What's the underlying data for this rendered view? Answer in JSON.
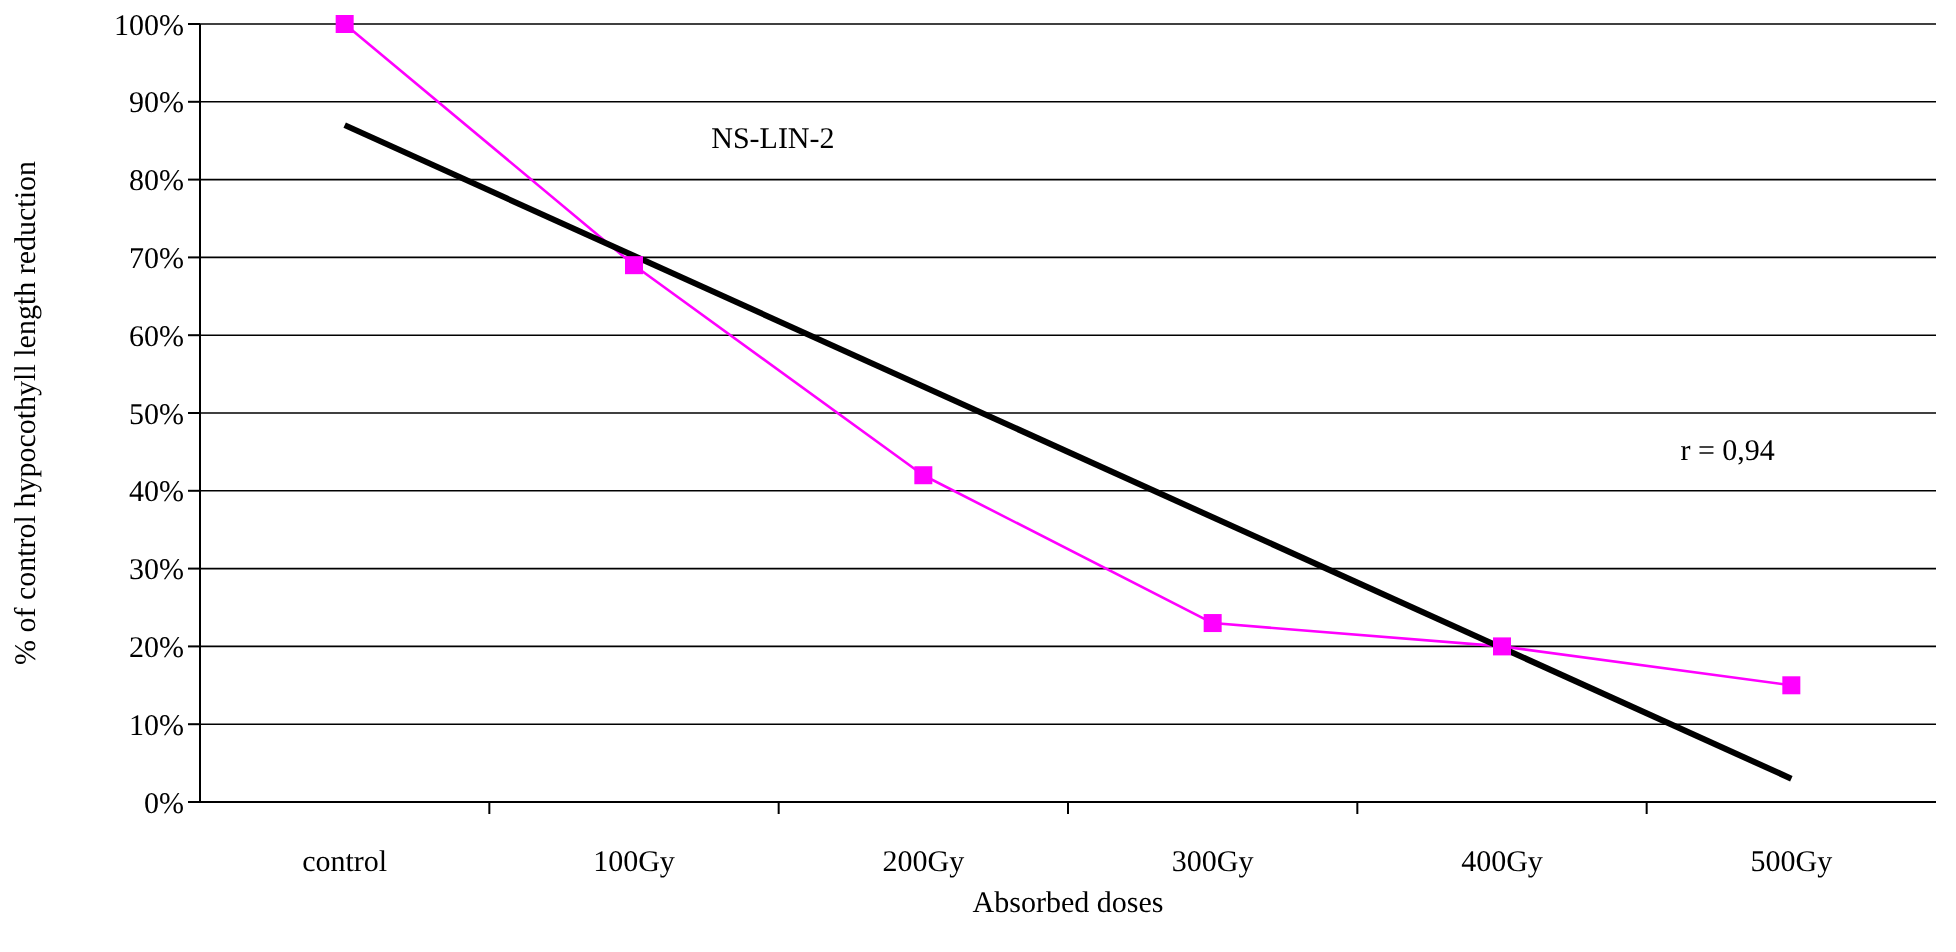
{
  "chart_data": {
    "type": "line",
    "title": "NS-LIN-2",
    "xlabel": "Absorbed doses",
    "ylabel": "% of control hypocothyll length reduction",
    "categories": [
      "control",
      "100Gy",
      "200Gy",
      "300Gy",
      "400Gy",
      "500Gy"
    ],
    "series": [
      {
        "color": "#ff00ff",
        "values": [
          100,
          69,
          42,
          23,
          20,
          15
        ],
        "marker": "square"
      },
      {
        "type": "line",
        "color": "#000000",
        "x": [
          "control",
          "500Gy"
        ],
        "values": [
          87,
          3
        ],
        "marker": "none"
      }
    ],
    "ylim": [
      0,
      100
    ],
    "yticks": [
      {
        "value": 0,
        "label": "0%"
      },
      {
        "value": 10,
        "label": "10%"
      },
      {
        "value": 20,
        "label": "20%"
      },
      {
        "value": 30,
        "label": "30%"
      },
      {
        "value": 40,
        "label": "40%"
      },
      {
        "value": 50,
        "label": "50%"
      },
      {
        "value": 60,
        "label": "60%"
      },
      {
        "value": 70,
        "label": "70%"
      },
      {
        "value": 80,
        "label": "80%"
      },
      {
        "value": 90,
        "label": "90%"
      },
      {
        "value": 100,
        "label": "100%"
      }
    ],
    "grid": "y",
    "annotations": [
      "r = 0,94"
    ]
  }
}
